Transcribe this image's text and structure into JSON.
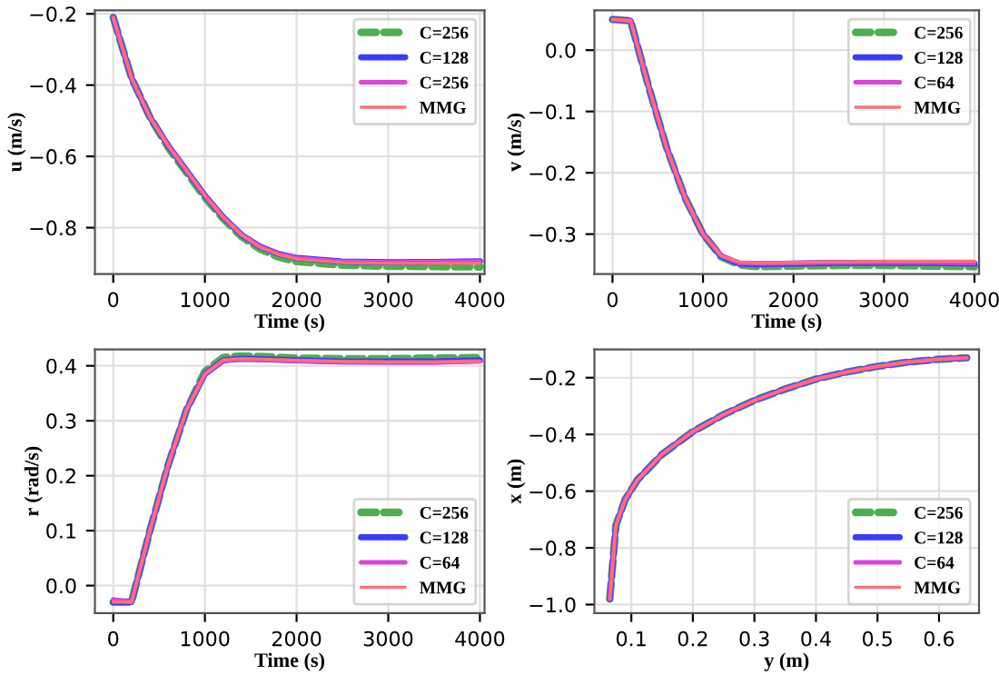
{
  "chart_data": [
    {
      "type": "line",
      "xlabel": "Time (s)",
      "ylabel": "u (m/s)",
      "xlim": [
        -200,
        4050
      ],
      "ylim": [
        -0.93,
        -0.19
      ],
      "xticks": [
        0,
        1000,
        2000,
        3000,
        4000
      ],
      "yticks": [
        {
          "value": -0.8,
          "label": "−0.8"
        },
        {
          "value": -0.6,
          "label": "−0.6"
        },
        {
          "value": -0.4,
          "label": "−0.4"
        },
        {
          "value": -0.2,
          "label": "−0.2"
        }
      ],
      "grid": true,
      "legend": "top right",
      "x": [
        0,
        200,
        400,
        600,
        800,
        1000,
        1200,
        1400,
        1600,
        1800,
        2000,
        2500,
        3000,
        3500,
        4000
      ],
      "series": [
        {
          "name": "C=256",
          "color": "#4caf50",
          "line_style": "dashed",
          "values": [
            -0.21,
            -0.38,
            -0.49,
            -0.575,
            -0.645,
            -0.715,
            -0.775,
            -0.825,
            -0.86,
            -0.882,
            -0.895,
            -0.905,
            -0.908,
            -0.909,
            -0.91
          ]
        },
        {
          "name": "C=128",
          "color": "#3b3bff",
          "line_style": "solid",
          "values": [
            -0.21,
            -0.38,
            -0.49,
            -0.57,
            -0.64,
            -0.71,
            -0.77,
            -0.82,
            -0.853,
            -0.873,
            -0.885,
            -0.895,
            -0.897,
            -0.896,
            -0.894
          ]
        },
        {
          "name": "C=256",
          "color": "#e040e0",
          "line_style": "solid",
          "values": [
            -0.21,
            -0.38,
            -0.49,
            -0.57,
            -0.64,
            -0.71,
            -0.77,
            -0.82,
            -0.853,
            -0.873,
            -0.885,
            -0.895,
            -0.897,
            -0.896,
            -0.895
          ]
        },
        {
          "name": "MMG",
          "color": "#ff7070",
          "line_style": "solid",
          "values": [
            -0.21,
            -0.38,
            -0.49,
            -0.57,
            -0.64,
            -0.71,
            -0.77,
            -0.82,
            -0.855,
            -0.875,
            -0.888,
            -0.898,
            -0.9,
            -0.9,
            -0.9
          ]
        }
      ]
    },
    {
      "type": "line",
      "xlabel": "Time (s)",
      "ylabel": "v (m/s)",
      "xlim": [
        -200,
        4050
      ],
      "ylim": [
        -0.365,
        0.065
      ],
      "xticks": [
        0,
        1000,
        2000,
        3000,
        4000
      ],
      "yticks": [
        {
          "value": -0.3,
          "label": "−0.3"
        },
        {
          "value": -0.2,
          "label": "−0.2"
        },
        {
          "value": -0.1,
          "label": "−0.1"
        },
        {
          "value": 0.0,
          "label": "0.0"
        }
      ],
      "grid": true,
      "legend": "top right",
      "x": [
        0,
        200,
        400,
        600,
        800,
        1000,
        1200,
        1400,
        1600,
        2000,
        2500,
        3000,
        3500,
        4000
      ],
      "series": [
        {
          "name": "C=256",
          "color": "#4caf50",
          "line_style": "dashed",
          "values": [
            0.05,
            0.048,
            -0.06,
            -0.16,
            -0.24,
            -0.3,
            -0.337,
            -0.35,
            -0.353,
            -0.352,
            -0.351,
            -0.351,
            -0.352,
            -0.353
          ]
        },
        {
          "name": "C=128",
          "color": "#3b3bff",
          "line_style": "solid",
          "values": [
            0.05,
            0.048,
            -0.06,
            -0.16,
            -0.24,
            -0.3,
            -0.336,
            -0.348,
            -0.349,
            -0.348,
            -0.347,
            -0.347,
            -0.347,
            -0.348
          ]
        },
        {
          "name": "C=64",
          "color": "#e040e0",
          "line_style": "solid",
          "values": [
            0.05,
            0.048,
            -0.06,
            -0.16,
            -0.24,
            -0.3,
            -0.335,
            -0.347,
            -0.348,
            -0.347,
            -0.346,
            -0.346,
            -0.346,
            -0.347
          ]
        },
        {
          "name": "MMG",
          "color": "#ff7070",
          "line_style": "solid",
          "values": [
            0.05,
            0.048,
            -0.06,
            -0.16,
            -0.24,
            -0.3,
            -0.335,
            -0.345,
            -0.347,
            -0.346,
            -0.345,
            -0.344,
            -0.344,
            -0.344
          ]
        }
      ]
    },
    {
      "type": "line",
      "xlabel": "Time (s)",
      "ylabel": "r (rad/s)",
      "xlim": [
        -200,
        4050
      ],
      "ylim": [
        -0.05,
        0.43
      ],
      "xticks": [
        0,
        1000,
        2000,
        3000,
        4000
      ],
      "yticks": [
        {
          "value": 0.0,
          "label": "0.0"
        },
        0.1,
        0.2,
        0.3,
        0.4
      ],
      "grid": true,
      "legend": "bottom right",
      "x": [
        0,
        200,
        400,
        600,
        800,
        1000,
        1200,
        1400,
        1600,
        2000,
        2500,
        3000,
        3500,
        4000
      ],
      "series": [
        {
          "name": "C=256",
          "color": "#4caf50",
          "line_style": "dashed",
          "values": [
            -0.03,
            -0.03,
            0.1,
            0.22,
            0.32,
            0.39,
            0.415,
            0.418,
            0.417,
            0.414,
            0.413,
            0.413,
            0.414,
            0.415
          ]
        },
        {
          "name": "C=128",
          "color": "#3b3bff",
          "line_style": "solid",
          "values": [
            -0.03,
            -0.03,
            0.1,
            0.22,
            0.32,
            0.385,
            0.41,
            0.413,
            0.412,
            0.41,
            0.408,
            0.408,
            0.408,
            0.41
          ]
        },
        {
          "name": "C=64",
          "color": "#e040e0",
          "line_style": "solid",
          "values": [
            -0.025,
            -0.03,
            0.1,
            0.22,
            0.32,
            0.385,
            0.41,
            0.412,
            0.411,
            0.409,
            0.407,
            0.406,
            0.406,
            0.408
          ]
        },
        {
          "name": "MMG",
          "color": "#ff7070",
          "line_style": "solid",
          "values": [
            -0.03,
            -0.03,
            0.1,
            0.22,
            0.32,
            0.385,
            0.41,
            0.413,
            0.412,
            0.41,
            0.408,
            0.407,
            0.407,
            0.408
          ]
        }
      ]
    },
    {
      "type": "line",
      "xlabel": "y (m)",
      "ylabel": "x (m)",
      "xlim": [
        0.04,
        0.665
      ],
      "ylim": [
        -1.03,
        -0.1
      ],
      "xticks": [
        0.1,
        0.2,
        0.3,
        0.4,
        0.5,
        0.6
      ],
      "yticks": [
        {
          "value": -1.0,
          "label": "−1.0"
        },
        {
          "value": -0.8,
          "label": "−0.8"
        },
        {
          "value": -0.6,
          "label": "−0.6"
        },
        {
          "value": -0.4,
          "label": "−0.4"
        },
        {
          "value": -0.2,
          "label": "−0.2"
        }
      ],
      "grid": true,
      "legend": "bottom right",
      "x": [
        0.065,
        0.07,
        0.075,
        0.09,
        0.11,
        0.15,
        0.2,
        0.25,
        0.3,
        0.35,
        0.4,
        0.45,
        0.5,
        0.55,
        0.6,
        0.645
      ],
      "series": [
        {
          "name": "C=256",
          "color": "#4caf50",
          "line_style": "dashed",
          "values": [
            -0.98,
            -0.85,
            -0.72,
            -0.63,
            -0.56,
            -0.47,
            -0.39,
            -0.33,
            -0.28,
            -0.24,
            -0.205,
            -0.18,
            -0.16,
            -0.145,
            -0.135,
            -0.13
          ]
        },
        {
          "name": "C=128",
          "color": "#3b3bff",
          "line_style": "solid",
          "values": [
            -0.98,
            -0.85,
            -0.72,
            -0.63,
            -0.56,
            -0.47,
            -0.39,
            -0.33,
            -0.28,
            -0.24,
            -0.205,
            -0.18,
            -0.16,
            -0.145,
            -0.135,
            -0.13
          ]
        },
        {
          "name": "C=64",
          "color": "#e040e0",
          "line_style": "solid",
          "values": [
            -0.98,
            -0.85,
            -0.72,
            -0.63,
            -0.56,
            -0.47,
            -0.39,
            -0.33,
            -0.28,
            -0.24,
            -0.205,
            -0.18,
            -0.16,
            -0.145,
            -0.135,
            -0.13
          ]
        },
        {
          "name": "MMG",
          "color": "#ff7070",
          "line_style": "solid",
          "values": [
            -0.98,
            -0.85,
            -0.72,
            -0.63,
            -0.56,
            -0.47,
            -0.39,
            -0.33,
            -0.28,
            -0.24,
            -0.205,
            -0.18,
            -0.16,
            -0.145,
            -0.135,
            -0.13
          ]
        }
      ]
    }
  ]
}
